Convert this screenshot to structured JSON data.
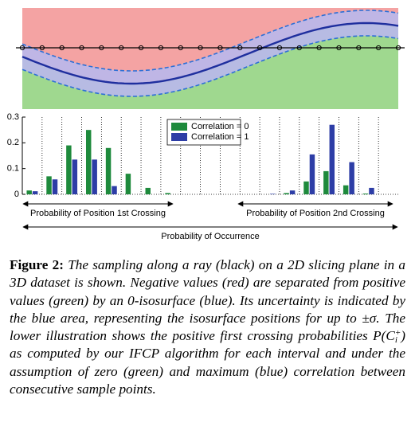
{
  "chart_data": {
    "type": "bar",
    "categories": [
      null,
      null,
      null,
      null,
      null,
      null,
      null,
      null,
      null,
      null,
      null,
      null,
      null,
      null,
      null,
      null,
      null,
      null,
      null
    ],
    "series": [
      {
        "name": "Correlation = 0",
        "color": "#1e8a3c",
        "values": [
          0.015,
          0.07,
          0.19,
          0.25,
          0.18,
          0.08,
          0.025,
          0.005,
          0,
          0,
          0,
          0,
          0,
          0.005,
          0.05,
          0.09,
          0.035,
          0.003,
          0
        ]
      },
      {
        "name": "Correlation = 1",
        "color": "#2d3da6",
        "values": [
          0.012,
          0.058,
          0.135,
          0.135,
          0.032,
          0,
          0,
          0,
          0,
          0,
          0,
          0,
          0.002,
          0.015,
          0.155,
          0.27,
          0.125,
          0.025,
          0
        ]
      }
    ],
    "ylim": [
      0,
      0.3
    ],
    "yticks": [
      0,
      0.1,
      0.2,
      0.3
    ],
    "annotations": [
      "Probability of Position 1st Crossing",
      "Probability of Position 2nd Crossing",
      "Probability of Occurrence"
    ]
  },
  "caption": {
    "label": "Figure 2:",
    "text1": "The sampling along a ray (black) on a 2D slicing plane in a 3D dataset is shown. Negative values (red) are separated from positive values (green) by an 0-isosurface (blue). Its uncertainty is indicated by the blue area, representing the isosurface positions for up to ±σ. The lower illustration shows the positive first crossing probabilities",
    "math_base": "P(C",
    "math_sub": "i",
    "math_sup": "+",
    "math_close": ")",
    "text2": "as computed by our IFCP algorithm for each interval and under the assumption of zero (green) and maximum (blue) correlation between consecutive sample points."
  }
}
